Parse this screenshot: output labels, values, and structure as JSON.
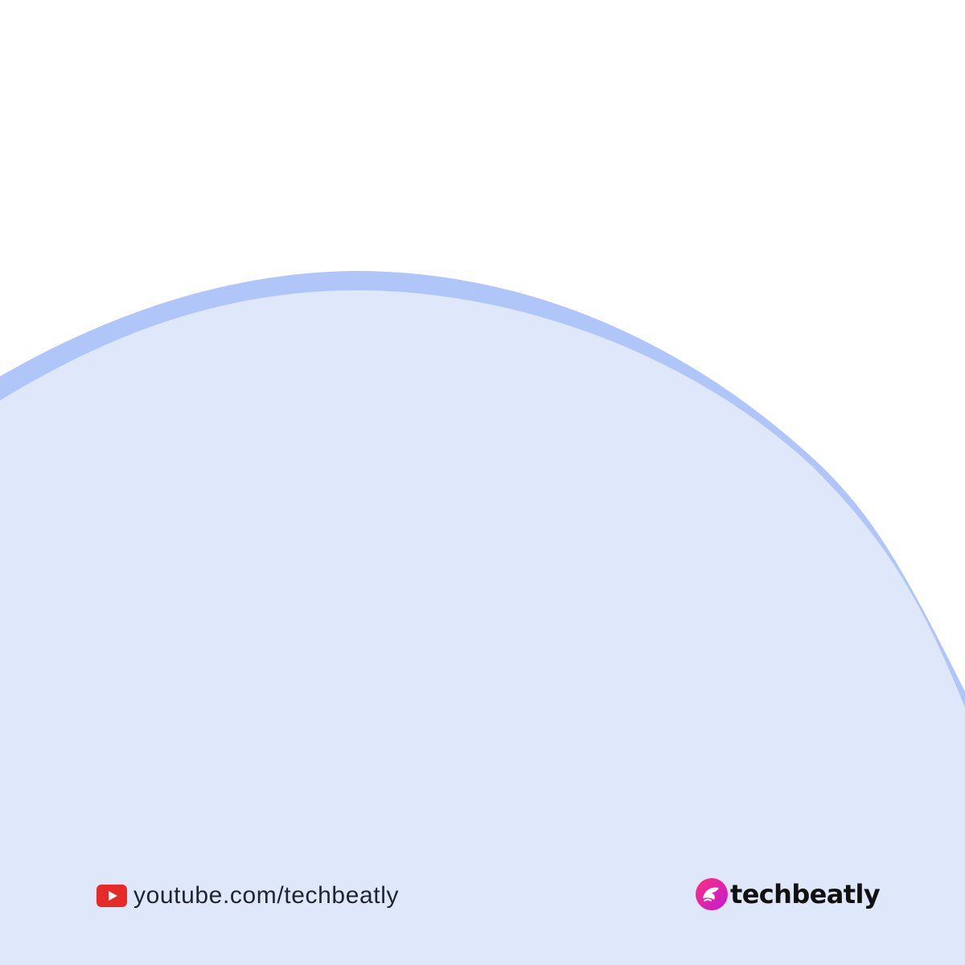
{
  "colors": {
    "background": "#ffffff",
    "arc_outer": "#b1c6f8",
    "arc_fill": "#dfe8fb",
    "youtube_red": "#e62a2a",
    "brand_gradient_start": "#ff2e7e",
    "brand_gradient_end": "#c11bd6"
  },
  "footer": {
    "link_icon": "youtube-icon",
    "link_text": "youtube.com/techbeatly"
  },
  "brand": {
    "logo_icon": "techbeatly-logo-icon",
    "name": "techbeatly"
  }
}
